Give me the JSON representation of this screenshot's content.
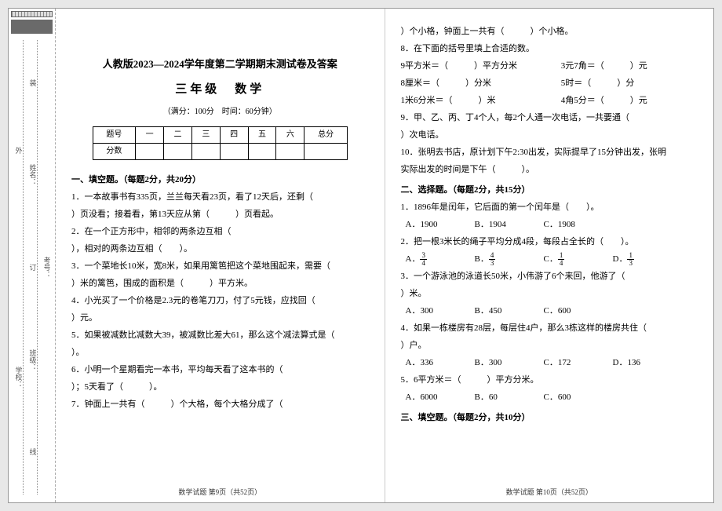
{
  "binding": {
    "outer": "外",
    "labels": [
      "学校：",
      "姓名：",
      "班级：",
      "考号："
    ],
    "notes": [
      "装",
      "订",
      "线"
    ]
  },
  "header": {
    "title1": "人教版2023—2024学年度第二学期期末测试卷及答案",
    "title2": "三年级　数学",
    "subtitle": "（满分：100分　时间：60分钟）"
  },
  "score_table": {
    "row_headers": [
      "题号",
      "分数"
    ],
    "cols": [
      "一",
      "二",
      "三",
      "四",
      "五",
      "六",
      "总分"
    ]
  },
  "sectionA": {
    "heading": "一、填空题。（每题2分，共20分）",
    "q1a": "1．一本故事书有335页，兰兰每天看23页，看了12天后，还剩（",
    "q1b": "）页没看；接着看，第13天应从第（　　　）页看起。",
    "q2a": "2．在一个正方形中，相邻的两条边互相（",
    "q2b": "），相对的两条边互相（　　）。",
    "q3a": "3．一个菜地长10米，宽8米，如果用篱笆把这个菜地围起来，需要（",
    "q3b": "）米的篱笆，围成的面积是（　　　）平方米。",
    "q4a": "4．小光买了一个价格是2.3元的卷笔刀刀，付了5元钱，应找回（",
    "q4b": "）元。",
    "q5a": "5．如果被减数比减数大39，被减数比差大61，那么这个减法算式是（",
    "q5b": "）。",
    "q6a": "6．小明一个星期看完一本书，平均每天看了这本书的（",
    "q6b": "）；5天看了（　　　）。",
    "q7": "7．钟面上一共有（　　　）个大格，每个大格分成了（"
  },
  "rightCol": {
    "q7c": "）个小格，钟面上一共有（　　　）个小格。",
    "q8": "8．在下面的括号里填上合适的数。",
    "q8r1a": "9平方米＝（　　　）平方分米",
    "q8r1b": "3元7角＝（　　　）元",
    "q8r2a": "8厘米＝（　　　）分米",
    "q8r2b": "5时＝（　　　）分",
    "q8r3a": "1米6分米＝（　　　）米",
    "q8r3b": "4角5分＝（　　　）元",
    "q9a": "9．甲、乙、丙、丁4个人，每2个人通一次电话，一共要通（",
    "q9b": "）次电话。",
    "q10a": "10．张明去书店，原计划下午2:30出发，实际提早了15分钟出发，张明",
    "q10b": "实际出发的时间是下午（　　　）。"
  },
  "sectionB": {
    "heading": "二、选择题。（每题2分，共15分）",
    "q1": "1．1896年是闰年，它后面的第一个闰年是（　　）。",
    "q1opts": [
      "A．1900",
      "B．1904",
      "C．1908"
    ],
    "q2": "2．把一根3米长的绳子平均分成4段，每段占全长的（　　）。",
    "q2opts": [
      {
        "label": "A．",
        "n": "3",
        "d": "4"
      },
      {
        "label": "B．",
        "n": "4",
        "d": "3"
      },
      {
        "label": "C．",
        "n": "1",
        "d": "4"
      },
      {
        "label": "D．",
        "n": "1",
        "d": "3"
      }
    ],
    "q3a": "3．一个游泳池的泳道长50米，小伟游了6个来回，他游了（",
    "q3b": "）米。",
    "q3opts": [
      "A．300",
      "B．450",
      "C．600"
    ],
    "q4a": "4．如果一栋楼房有28层，每层住4户，那么3栋这样的楼房共住（",
    "q4b": "）户。",
    "q4opts": [
      "A．336",
      "B．300",
      "C．172",
      "D．136"
    ],
    "q5": "5．6平方米＝（　　　）平方分米。",
    "q5opts": [
      "A．6000",
      "B．60",
      "C．600"
    ]
  },
  "sectionC": {
    "heading": "三、填空题。（每题2分，共10分）"
  },
  "footer": {
    "left": "数学试题 第9页（共52页）",
    "right": "数学试题 第10页（共52页）"
  }
}
